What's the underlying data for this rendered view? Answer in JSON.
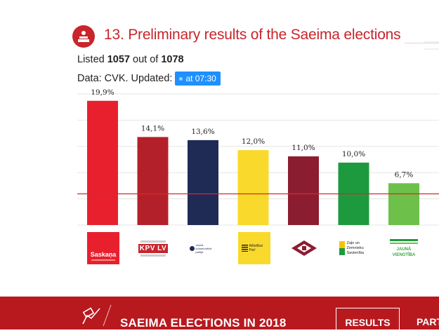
{
  "header": {
    "title": "13. Preliminary results of the Saeima elections",
    "listed_prefix": "Listed ",
    "listed_count": "1057",
    "listed_mid": " out of ",
    "listed_total": "1078",
    "updated_label": "Data: CVK. Updated:",
    "updated_time": "at 07:30"
  },
  "chart_data": {
    "type": "bar",
    "categories": [
      "Saskaņa",
      "KPV LV",
      "Jaunā konservatīvā partija",
      "Attīstībai/Par!",
      "Nacionālā apvienība",
      "Zaļo un Zemnieku Savienība",
      "Jaunā Vienotība"
    ],
    "values": [
      19.9,
      14.1,
      13.6,
      12.0,
      11.0,
      10.0,
      6.7
    ],
    "value_labels": [
      "19,9%",
      "14,1%",
      "13,6%",
      "12,0%",
      "11,0%",
      "10,0%",
      "6,7%"
    ],
    "colors": [
      "#e8202e",
      "#b4202a",
      "#1f2a55",
      "#f9d92b",
      "#8c1d30",
      "#1e9a3e",
      "#6dc049"
    ],
    "threshold": 5,
    "threshold_color": "#d42a2a",
    "ylim": [
      0,
      21
    ],
    "grid": true
  },
  "logos": {
    "saskana": "Saskaņa",
    "kpv": "KPV LV",
    "jkp": "Jaunā konservatīvā partija",
    "ap": "Attīstībai Par!",
    "zzs": "Zaļo un Zemnieku Savienība",
    "jv": "JAUNĀ VIENOTĪBA"
  },
  "footer": {
    "title": "SAEIMA ELECTIONS IN 2018",
    "results_label": "RESULTS",
    "parties_label": "PARTIES"
  }
}
